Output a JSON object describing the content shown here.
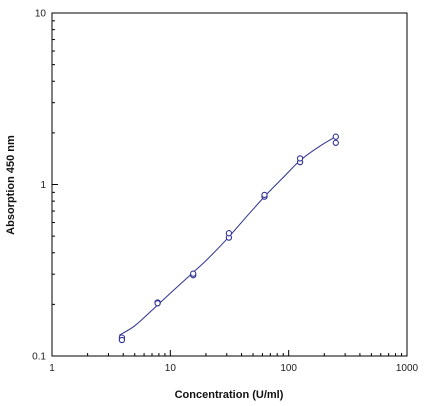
{
  "chart_data": {
    "type": "scatter",
    "title": "",
    "xlabel": "Concentration (U/ml)",
    "ylabel": "Absorption 450 nm",
    "x_scale": "log",
    "y_scale": "log",
    "xlim": [
      1,
      1000
    ],
    "ylim": [
      0.1,
      10
    ],
    "x_ticks": [
      "1",
      "10",
      "100",
      "1000"
    ],
    "y_ticks": [
      "0.1",
      "1",
      "10"
    ],
    "grid": false,
    "legend": "none",
    "series": [
      {
        "kind": "points",
        "marker": "open-circle",
        "points": [
          {
            "x": 3.9,
            "y": 0.128
          },
          {
            "x": 3.9,
            "y": 0.124
          },
          {
            "x": 7.8,
            "y": 0.205
          },
          {
            "x": 7.8,
            "y": 0.203
          },
          {
            "x": 15.6,
            "y": 0.296
          },
          {
            "x": 15.6,
            "y": 0.302
          },
          {
            "x": 31.25,
            "y": 0.49
          },
          {
            "x": 31.25,
            "y": 0.52
          },
          {
            "x": 62.5,
            "y": 0.85
          },
          {
            "x": 62.5,
            "y": 0.87
          },
          {
            "x": 125,
            "y": 1.35
          },
          {
            "x": 125,
            "y": 1.42
          },
          {
            "x": 250,
            "y": 1.75
          },
          {
            "x": 250,
            "y": 1.9
          }
        ]
      },
      {
        "kind": "fit-line",
        "points": [
          {
            "x": 3.7,
            "y": 0.132
          },
          {
            "x": 5,
            "y": 0.15
          },
          {
            "x": 7,
            "y": 0.185
          },
          {
            "x": 10,
            "y": 0.232
          },
          {
            "x": 15,
            "y": 0.3
          },
          {
            "x": 20,
            "y": 0.36
          },
          {
            "x": 30,
            "y": 0.48
          },
          {
            "x": 45,
            "y": 0.66
          },
          {
            "x": 62.5,
            "y": 0.85
          },
          {
            "x": 90,
            "y": 1.1
          },
          {
            "x": 125,
            "y": 1.38
          },
          {
            "x": 180,
            "y": 1.66
          },
          {
            "x": 260,
            "y": 1.93
          }
        ]
      }
    ]
  },
  "colors": {
    "series": "#2e3192",
    "axis": "#000000",
    "text": "#111111"
  }
}
